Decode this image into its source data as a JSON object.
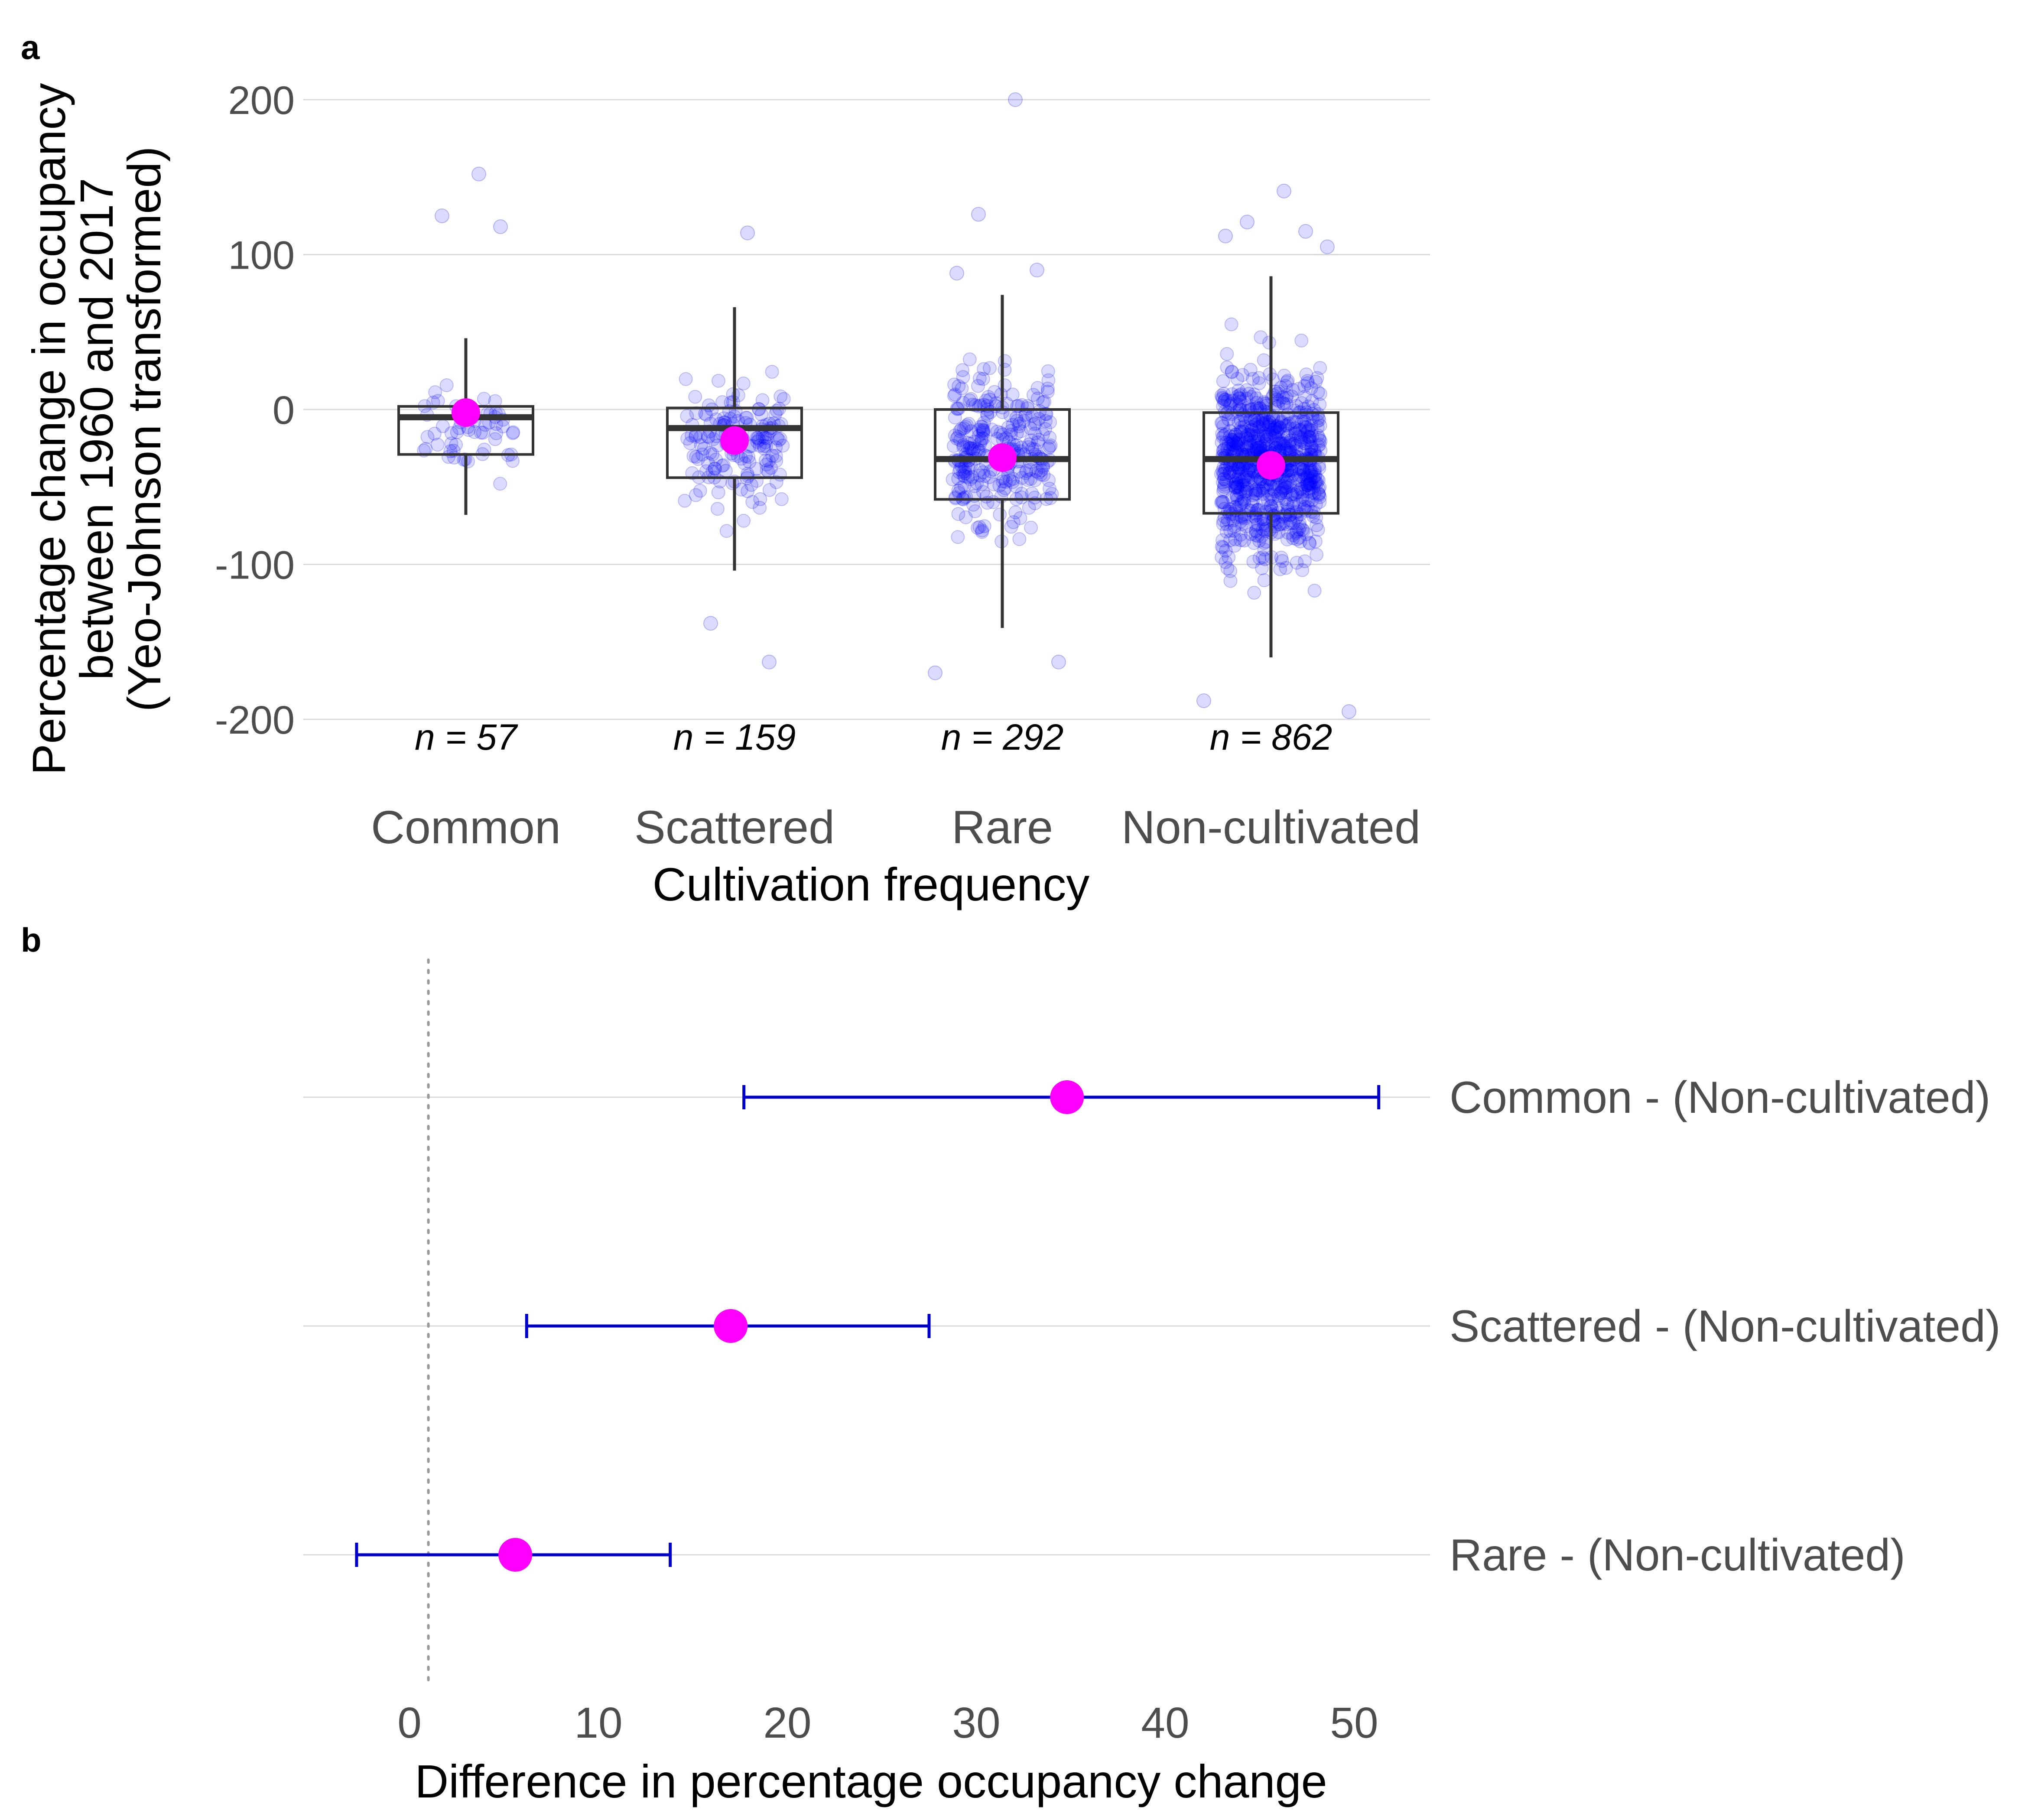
{
  "colors": {
    "jitter_point": "#0000ff",
    "mean_point": "#ff00ff",
    "box_stroke": "#333333",
    "error_bar": "#0000cc",
    "gridline": "#d9d9d9",
    "zero_line": "#999999"
  },
  "chart_data": [
    {
      "panel": "a",
      "type": "box",
      "title": "",
      "xlabel": "Cultivation frequency",
      "ylabel_lines": [
        "Percentage change in occupancy",
        "between 1960 and 2017",
        "(Yeo-Johnson transformed)"
      ],
      "categories": [
        "Common",
        "Scattered",
        "Rare",
        "Non-cultivated"
      ],
      "yticks": [
        "200",
        "100",
        "0",
        "-100",
        "-200"
      ],
      "ytick_values": [
        200,
        100,
        0,
        -100,
        -200
      ],
      "ylim": [
        -205,
        205
      ],
      "grid": true,
      "n_labels": [
        "n = 57",
        "n = 159",
        "n = 292",
        "n = 862"
      ],
      "n": [
        57,
        159,
        292,
        862
      ],
      "boxes": [
        {
          "whisker_low": -68,
          "q1": -29,
          "median": -5,
          "q3": 2,
          "whisker_high": 46,
          "mean": -2
        },
        {
          "whisker_low": -104,
          "q1": -44,
          "median": -12,
          "q3": 1,
          "whisker_high": 66,
          "mean": -20
        },
        {
          "whisker_low": -141,
          "q1": -58,
          "median": -32,
          "q3": 0,
          "whisker_high": 74,
          "mean": -31
        },
        {
          "whisker_low": -160,
          "q1": -67,
          "median": -32,
          "q3": -2,
          "whisker_high": 86,
          "mean": -36
        }
      ],
      "outliers": [
        [
          152,
          125,
          118
        ],
        [
          114,
          -138,
          -163
        ],
        [
          200,
          126,
          90,
          88,
          -163,
          -170
        ],
        [
          141,
          121,
          115,
          112,
          105,
          -188,
          -195
        ]
      ]
    },
    {
      "panel": "b",
      "type": "errorbar",
      "title": "",
      "xlabel": "Difference in percentage occupancy change",
      "xticks": [
        "0",
        "10",
        "20",
        "30",
        "40",
        "50"
      ],
      "xtick_values": [
        0,
        10,
        20,
        30,
        40,
        50
      ],
      "xlim": [
        -5.5,
        53
      ],
      "reference_line_x": 1,
      "grid": true,
      "comparisons": [
        {
          "label": "Common - (Non-cultivated)",
          "estimate": 34.8,
          "lower": 17.7,
          "upper": 51.3
        },
        {
          "label": "Scattered - (Non-cultivated)",
          "estimate": 17.0,
          "lower": 6.2,
          "upper": 27.5
        },
        {
          "label": "Rare - (Non-cultivated)",
          "estimate": 5.6,
          "lower": -2.8,
          "upper": 13.8
        }
      ]
    }
  ]
}
